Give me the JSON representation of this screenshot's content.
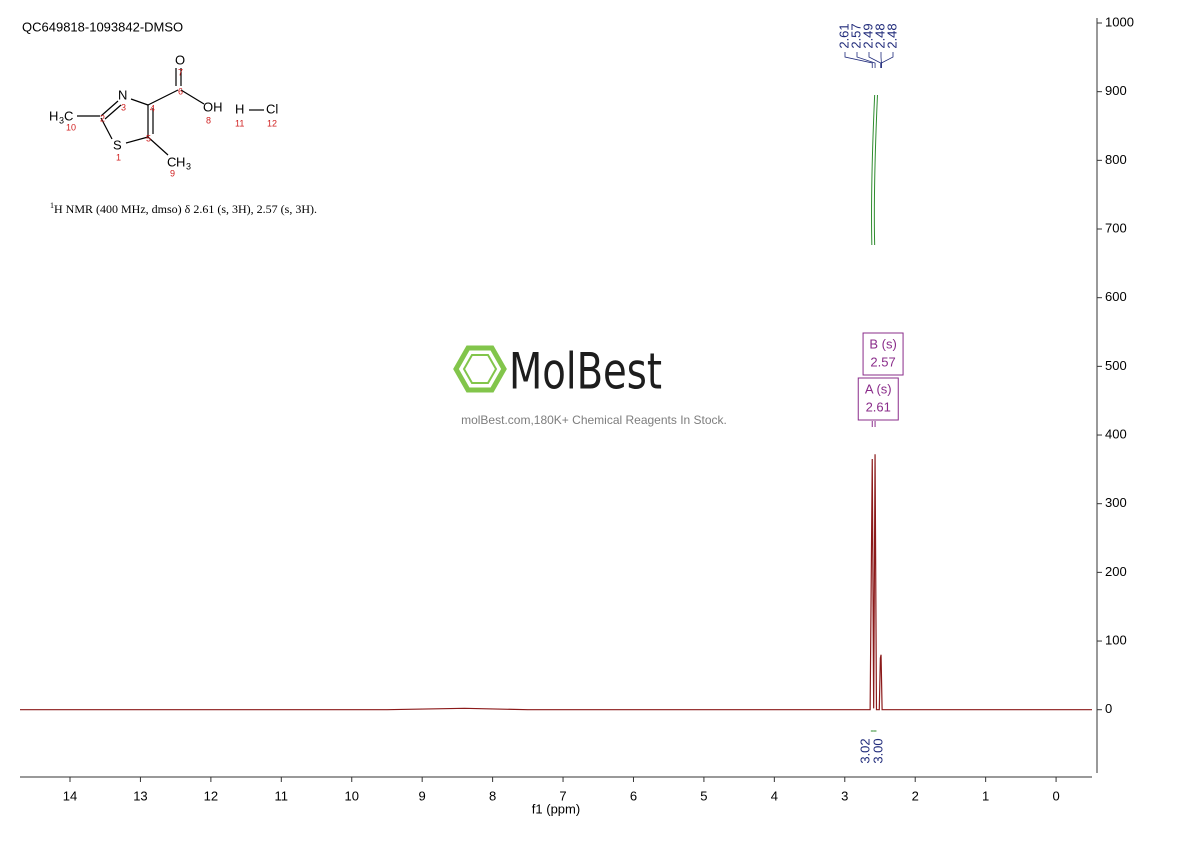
{
  "chart_data": {
    "type": "line",
    "title": "QC649818-1093842-DMSO",
    "x_label": "f1 (ppm)",
    "xlim": [
      14.71,
      -0.51
    ],
    "xticks": [
      14,
      13,
      12,
      11,
      10,
      9,
      8,
      7,
      6,
      5,
      4,
      3,
      2,
      1,
      0
    ],
    "ylim": [
      -98,
      1000
    ],
    "yticks": [
      0,
      100,
      200,
      300,
      400,
      500,
      600,
      700,
      800,
      900,
      1000
    ],
    "series": [
      {
        "color": "#8b1a1a",
        "x": [
          14.71,
          9.5,
          8.4,
          7.5,
          3.0,
          2.64,
          2.61,
          2.59,
          2.57,
          2.55,
          2.51,
          2.495,
          2.485,
          2.47,
          1.0,
          0.0,
          -0.51
        ],
        "values": [
          0,
          0,
          2,
          0,
          0,
          0,
          365,
          2,
          372,
          0,
          0,
          75,
          80,
          0,
          0,
          0,
          0
        ]
      }
    ],
    "peak_labels": [
      2.61,
      2.57,
      2.49,
      2.48,
      2.48
    ],
    "peak_label_color": "#1f2a7a",
    "integrals": {
      "color": "#2e8b2e",
      "ranges": [
        [
          2.63,
          2.59
        ],
        [
          2.59,
          2.55
        ]
      ],
      "values": [
        3.02,
        3.0
      ],
      "value_labels": [
        "3.02",
        "3.00"
      ]
    },
    "multiplets": [
      {
        "label": "A (s)",
        "shift": 2.61
      },
      {
        "label": "B (s)",
        "shift": 2.57
      }
    ],
    "multiplet_color": "#8a2c8a"
  },
  "structure": {
    "atoms": [
      "O",
      "OH",
      "N",
      "S",
      "Cl",
      "H"
    ],
    "h3c": [
      "H",
      "3",
      "C"
    ],
    "ch3": [
      "C",
      "H",
      "3"
    ],
    "numbers": [
      "7",
      "6",
      "8",
      "3",
      "4",
      "2",
      "10",
      "1",
      "5",
      "9",
      "11",
      "12"
    ]
  },
  "nmr_text": {
    "sup": "1",
    "text": "H NMR (400 MHz, dmso) δ 2.61 (s, 3H), 2.57 (s, 3H)."
  },
  "watermark": {
    "brand": "MolBest",
    "tagline": "molBest.com,180K+ Chemical Reagents In Stock."
  }
}
